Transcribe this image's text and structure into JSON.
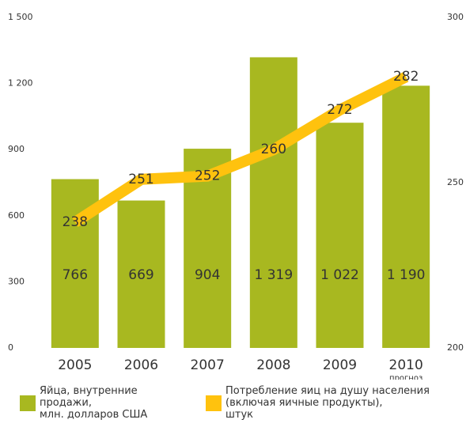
{
  "chart_data": {
    "type": "bar",
    "categories": [
      "2005",
      "2006",
      "2007",
      "2008",
      "2009",
      "2010"
    ],
    "annotation": "прогноз",
    "ylim": [
      0,
      1500
    ],
    "yticks": [
      0,
      300,
      600,
      900,
      {
        "value": 1200,
        "label": "1 200"
      },
      {
        "value": 1500,
        "label": "1 500"
      }
    ],
    "y2lim": [
      200,
      300
    ],
    "y2ticks": [
      200,
      250,
      300
    ],
    "series": [
      {
        "name": "Яйца, внутренние\nпродажи,\nмлн. долларов США",
        "type": "bar",
        "color": "#a8b820",
        "values": [
          766,
          669,
          904,
          1319,
          1022,
          1190
        ],
        "value_labels": [
          "766",
          "669",
          "904",
          "1 319",
          "1 022",
          "1 190"
        ]
      },
      {
        "name": "Потребление яиц на душу населения\n(включая яичные продукты),\nштук",
        "type": "line",
        "axis": "y2",
        "color": "#ffc20e",
        "values": [
          238,
          251,
          252,
          260,
          272,
          282
        ]
      }
    ]
  }
}
